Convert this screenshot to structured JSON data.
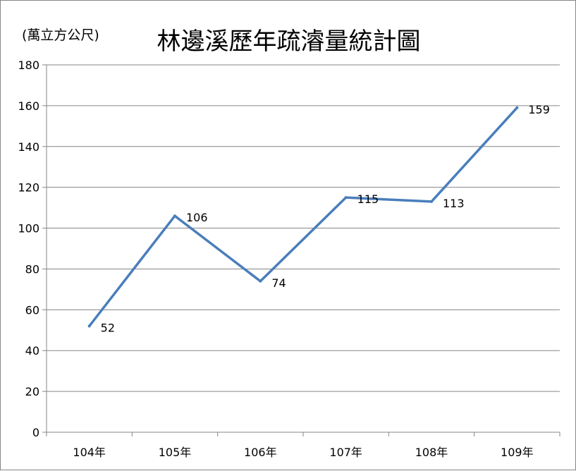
{
  "chart_data": {
    "type": "line",
    "title": "林邊溪歷年疏濬量統計圖",
    "unit_label": "(萬立方公尺)",
    "categories": [
      "104年",
      "105年",
      "106年",
      "107年",
      "108年",
      "109年"
    ],
    "series": [
      {
        "values": [
          52,
          106,
          74,
          115,
          113,
          159
        ]
      }
    ],
    "data_labels": [
      "52",
      "106",
      "74",
      "115",
      "113",
      "159"
    ],
    "yticks": [
      0,
      20,
      40,
      60,
      80,
      100,
      120,
      140,
      160,
      180
    ],
    "ylim": [
      0,
      180
    ],
    "grid": true,
    "legend": "none",
    "line_color": "#4a7ebb"
  }
}
